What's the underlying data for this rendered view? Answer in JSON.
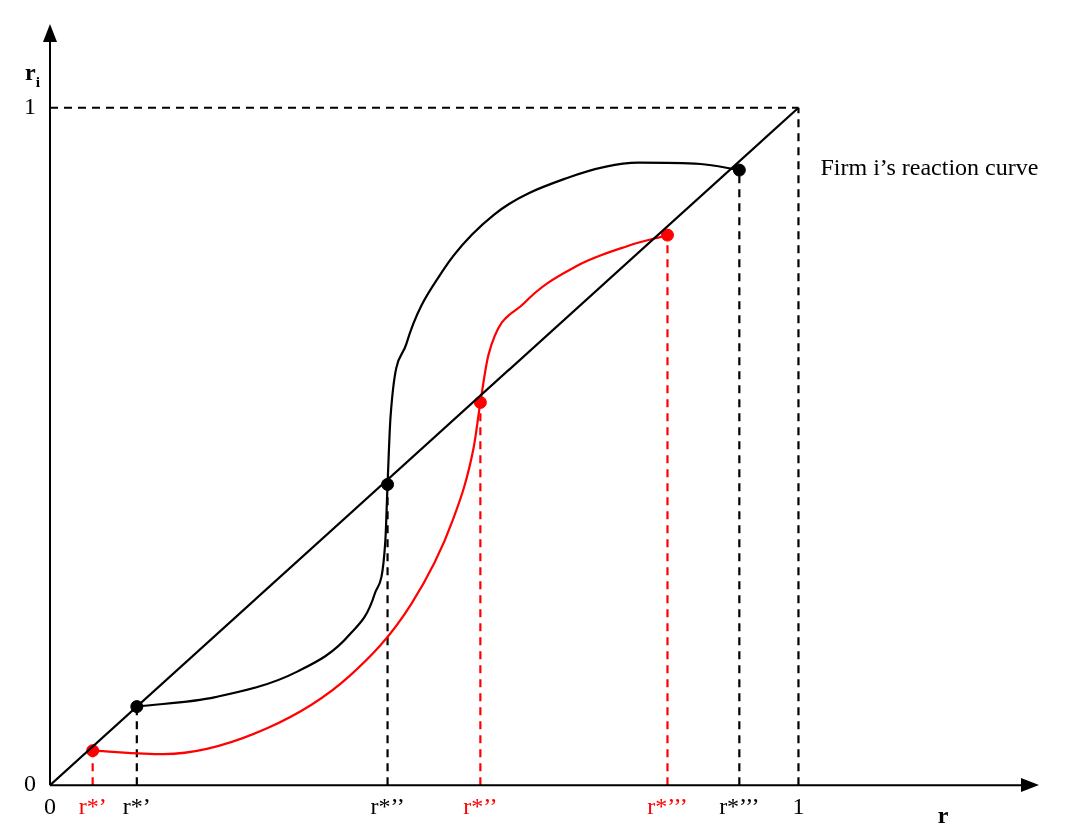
{
  "chart_data": {
    "type": "line",
    "xlabel": "r",
    "ylabel": "r$_{i}$",
    "xlim": [
      0,
      1.3
    ],
    "ylim": [
      0,
      1.1
    ],
    "xticks": [
      0,
      {
        "value": 0.057,
        "label": "r*’"
      },
      {
        "value": 0.116,
        "label": "r*’"
      },
      {
        "value": 0.451,
        "label": "r*’’"
      },
      {
        "value": 0.575,
        "label": "r*’’"
      },
      {
        "value": 0.825,
        "label": "r*’’’"
      },
      {
        "value": 0.921,
        "label": "r*’’’"
      },
      1
    ],
    "yticks": [
      0,
      1
    ],
    "grid": false,
    "legend": false,
    "annotations": [
      {
        "text": "Firm i’s reaction curve",
        "x": 1,
        "y": 0.91
      }
    ],
    "series": [
      {
        "type": "line",
        "color": "#000000",
        "x": [
          0,
          1
        ],
        "values": [
          0,
          1
        ]
      },
      {
        "type": "line",
        "color": "#000000",
        "x": [
          0.116,
          0.221,
          0.331,
          0.4,
          0.434,
          0.448,
          0.451,
          0.455,
          0.476,
          0.524,
          0.593,
          0.69,
          0.786,
          0.869,
          0.921
        ],
        "values": [
          0.116,
          0.13,
          0.168,
          0.222,
          0.283,
          0.36,
          0.444,
          0.544,
          0.651,
          0.758,
          0.842,
          0.896,
          0.919,
          0.917,
          0.908
        ]
      },
      {
        "type": "line",
        "color": "#ff0000",
        "x": [
          0.057,
          0.152,
          0.29,
          0.4,
          0.483,
          0.538,
          0.566,
          0.575,
          0.586,
          0.634,
          0.703,
          0.772,
          0.825
        ],
        "values": [
          0.051,
          0.046,
          0.084,
          0.161,
          0.268,
          0.391,
          0.498,
          0.565,
          0.636,
          0.712,
          0.766,
          0.796,
          0.812
        ]
      },
      {
        "type": "scatter",
        "color": "#000000",
        "marker": "circle",
        "x": [
          0.116,
          0.451,
          0.921
        ],
        "values": [
          0.116,
          0.444,
          0.908
        ]
      },
      {
        "type": "scatter",
        "color": "#ff0000",
        "marker": "circle",
        "x": [
          0.057,
          0.575,
          0.825
        ],
        "values": [
          0.051,
          0.565,
          0.812
        ]
      },
      {
        "type": "line",
        "line_style": "dashed",
        "color": "#000000",
        "x": [
          0,
          1
        ],
        "values": [
          1,
          1
        ]
      },
      {
        "type": "line",
        "line_style": "dashed",
        "color": "#000000",
        "x": [
          1,
          1
        ],
        "values": [
          0,
          1
        ]
      },
      {
        "type": "line",
        "line_style": "dashed",
        "color": "#000000",
        "x": [
          0.116,
          0.116
        ],
        "values": [
          0,
          0.116
        ]
      },
      {
        "type": "line",
        "line_style": "dashed",
        "color": "#000000",
        "x": [
          0.451,
          0.451
        ],
        "values": [
          0,
          0.444
        ]
      },
      {
        "type": "line",
        "line_style": "dashed",
        "color": "#000000",
        "x": [
          0.921,
          0.921
        ],
        "values": [
          0,
          0.908
        ]
      },
      {
        "type": "line",
        "line_style": "dashed",
        "color": "#ff0000",
        "x": [
          0.057,
          0.057
        ],
        "values": [
          0,
          0.051
        ]
      },
      {
        "type": "line",
        "line_style": "dashed",
        "color": "#ff0000",
        "x": [
          0.575,
          0.575
        ],
        "values": [
          0,
          0.565
        ]
      },
      {
        "type": "line",
        "line_style": "dashed",
        "color": "#ff0000",
        "x": [
          0.825,
          0.825
        ],
        "values": [
          0,
          0.812
        ]
      }
    ]
  }
}
